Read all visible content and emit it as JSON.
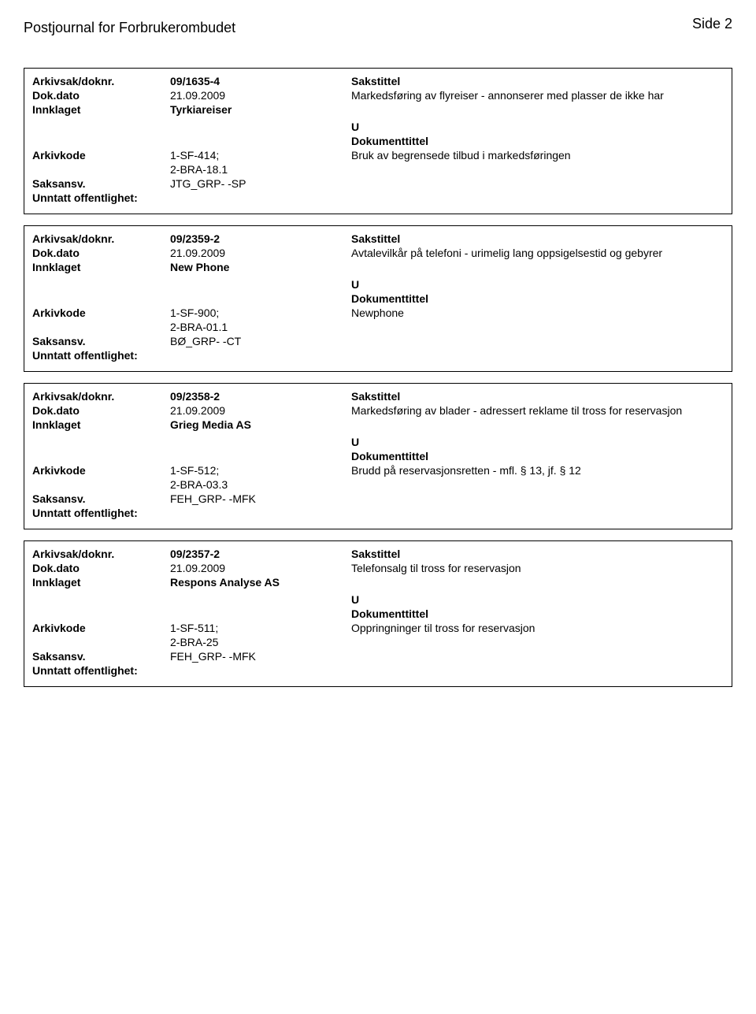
{
  "header": {
    "page_label": "Side 2",
    "title": "Postjournal for Forbrukerombudet"
  },
  "labels": {
    "arkivsak": "Arkivsak/doknr.",
    "dokdato": "Dok.dato",
    "innklaget": "Innklaget",
    "arkivkode": "Arkivkode",
    "saksansv": "Saksansv.",
    "unntatt": "Unntatt offentlighet:",
    "sakstittel": "Sakstittel",
    "dokumenttittel": "Dokumenttittel"
  },
  "records": [
    {
      "arkivsak": "09/1635-4",
      "dokdato": "21.09.2009",
      "sakstittel": "Markedsføring av flyreiser - annonserer med plasser de ikke har",
      "innklaget": "Tyrkiareiser",
      "u": "U",
      "arkivkode_l1": "1-SF-414;",
      "arkivkode_l2": "2-BRA-18.1",
      "dokumenttittel": "Bruk av begrensede tilbud i markedsføringen",
      "saksansv": "JTG_GRP- -SP"
    },
    {
      "arkivsak": "09/2359-2",
      "dokdato": "21.09.2009",
      "sakstittel": "Avtalevilkår på telefoni - urimelig lang oppsigelsestid og gebyrer",
      "innklaget": "New Phone",
      "u": "U",
      "arkivkode_l1": "1-SF-900;",
      "arkivkode_l2": "2-BRA-01.1",
      "dokumenttittel": "Newphone",
      "saksansv": "BØ_GRP- -CT"
    },
    {
      "arkivsak": "09/2358-2",
      "dokdato": "21.09.2009",
      "sakstittel": "Markedsføring av blader - adressert reklame til tross for reservasjon",
      "innklaget": "Grieg Media AS",
      "u": "U",
      "arkivkode_l1": "1-SF-512;",
      "arkivkode_l2": "2-BRA-03.3",
      "dokumenttittel": "Brudd på reservasjonsretten - mfl. § 13, jf. § 12",
      "saksansv": "FEH_GRP- -MFK"
    },
    {
      "arkivsak": "09/2357-2",
      "dokdato": "21.09.2009",
      "sakstittel": "Telefonsalg til tross for reservasjon",
      "innklaget": "Respons Analyse AS",
      "u": "U",
      "arkivkode_l1": "1-SF-511;",
      "arkivkode_l2": "2-BRA-25",
      "dokumenttittel": "Oppringninger til tross for reservasjon",
      "saksansv": "FEH_GRP- -MFK"
    }
  ]
}
